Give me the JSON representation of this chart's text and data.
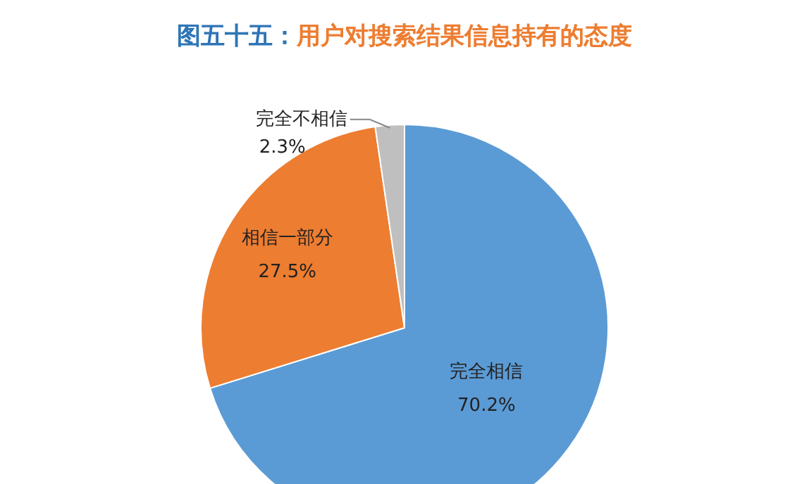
{
  "chart_data": {
    "type": "pie",
    "title": "图五十五：用户对搜索结果信息持有的态度",
    "categories": [
      "完全相信",
      "相信一部分",
      "完全不相信"
    ],
    "values": [
      70.2,
      27.5,
      2.3
    ],
    "value_labels": [
      "70.2%",
      "27.5%",
      "2.3%"
    ],
    "colors": [
      "#5b9bd5",
      "#ed7d31",
      "#bfbfbf"
    ],
    "legend": false
  }
}
